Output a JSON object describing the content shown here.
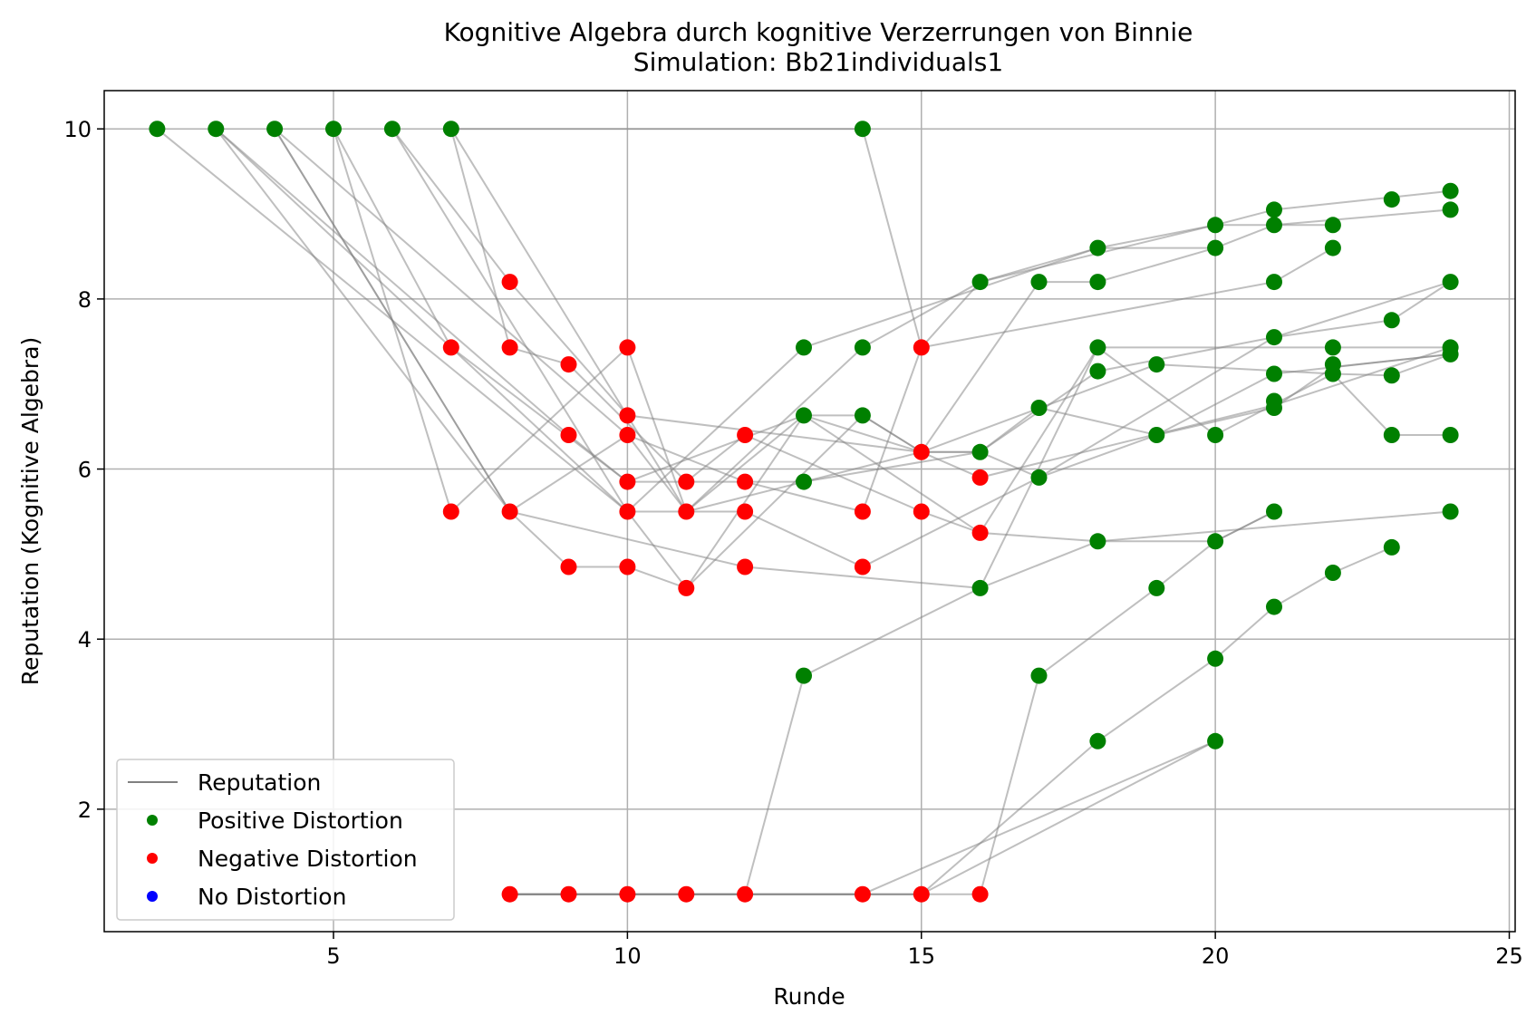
{
  "chart_data": {
    "type": "scatter",
    "title": "Kognitive Algebra durch kognitive Verzerrungen von Binnie",
    "subtitle": "Simulation: Bb21individuals1",
    "xlabel": "Runde",
    "ylabel": "Reputation (Kognitive Algebra)",
    "xlim": [
      1.1,
      25.1
    ],
    "ylim": [
      0.56,
      10.45
    ],
    "xticks": [
      5,
      10,
      15,
      20,
      25
    ],
    "yticks": [
      2,
      4,
      6,
      8,
      10
    ],
    "grid": true,
    "legend_position": "lower-left",
    "legend": [
      {
        "label": "Reputation",
        "kind": "line",
        "color": "#808080"
      },
      {
        "label": "Positive Distortion",
        "kind": "dot",
        "color": "#008000"
      },
      {
        "label": "Negative Distortion",
        "kind": "dot",
        "color": "#ff0000"
      },
      {
        "label": "No Distortion",
        "kind": "dot",
        "color": "#0000ff"
      }
    ],
    "colors": {
      "positive": "#008000",
      "negative": "#ff0000",
      "none": "#0000ff",
      "line": "#808080"
    },
    "series": [
      {
        "points": [
          [
            2,
            10
          ],
          [
            10,
            5.5
          ],
          [
            11,
            4.6
          ],
          [
            13,
            6.63
          ],
          [
            14,
            6.63
          ],
          [
            15,
            6.2
          ],
          [
            16,
            6.2
          ],
          [
            18,
            7.15
          ],
          [
            21,
            7.55
          ],
          [
            24,
            8.2
          ]
        ]
      },
      {
        "points": [
          [
            3,
            10
          ],
          [
            10,
            5.5
          ],
          [
            13,
            7.43
          ],
          [
            18,
            8.6
          ],
          [
            20,
            8.87
          ],
          [
            21,
            9.05
          ],
          [
            24,
            9.27
          ]
        ]
      },
      {
        "points": [
          [
            3,
            10
          ],
          [
            8,
            5.5
          ],
          [
            10,
            6.4
          ],
          [
            11,
            5.5
          ],
          [
            13,
            6.63
          ],
          [
            15,
            6.2
          ],
          [
            16,
            5.9
          ],
          [
            21,
            6.75
          ],
          [
            24,
            7.43
          ]
        ]
      },
      {
        "points": [
          [
            3,
            10
          ],
          [
            9,
            6.4
          ],
          [
            10,
            5.85
          ],
          [
            13,
            5.85
          ],
          [
            16,
            6.2
          ],
          [
            17,
            6.72
          ],
          [
            19,
            6.4
          ],
          [
            21,
            7.12
          ],
          [
            24,
            7.35
          ]
        ]
      },
      {
        "points": [
          [
            4,
            10
          ],
          [
            10,
            6.4
          ],
          [
            12,
            5.85
          ],
          [
            14,
            5.5
          ],
          [
            15,
            7.43
          ],
          [
            21,
            8.2
          ],
          [
            22,
            8.6
          ]
        ]
      },
      {
        "points": [
          [
            4,
            10
          ],
          [
            8,
            5.5
          ],
          [
            12,
            4.85
          ],
          [
            16,
            4.6
          ],
          [
            18,
            5.15
          ],
          [
            24,
            5.5
          ]
        ]
      },
      {
        "points": [
          [
            4,
            10
          ],
          [
            8,
            5.5
          ],
          [
            9,
            4.85
          ],
          [
            10,
            4.85
          ],
          [
            11,
            4.6
          ],
          [
            14,
            6.63
          ],
          [
            15,
            6.2
          ],
          [
            16,
            6.2
          ],
          [
            17,
            5.9
          ],
          [
            21,
            7.55
          ],
          [
            23,
            7.75
          ],
          [
            24,
            8.2
          ]
        ]
      },
      {
        "points": [
          [
            5,
            10
          ],
          [
            7,
            5.5
          ],
          [
            10,
            7.43
          ],
          [
            11,
            5.5
          ],
          [
            14,
            7.43
          ],
          [
            16,
            8.2
          ],
          [
            20,
            8.87
          ],
          [
            21,
            8.87
          ],
          [
            24,
            9.05
          ]
        ]
      },
      {
        "points": [
          [
            5,
            10
          ],
          [
            7,
            7.43
          ],
          [
            10,
            5.85
          ],
          [
            13,
            6.63
          ],
          [
            16,
            5.25
          ],
          [
            18,
            7.43
          ],
          [
            22,
            7.43
          ],
          [
            24,
            7.43
          ]
        ]
      },
      {
        "points": [
          [
            6,
            10
          ],
          [
            10,
            5.5
          ],
          [
            12,
            5.5
          ],
          [
            14,
            4.85
          ],
          [
            17,
            5.9
          ],
          [
            19,
            6.4
          ],
          [
            21,
            6.72
          ],
          [
            22,
            7.2
          ],
          [
            24,
            7.35
          ]
        ]
      },
      {
        "points": [
          [
            6,
            10
          ],
          [
            8,
            8.2
          ],
          [
            10,
            6.63
          ],
          [
            15,
            6.2
          ],
          [
            17,
            8.2
          ],
          [
            18,
            8.2
          ],
          [
            20,
            8.6
          ],
          [
            21,
            8.87
          ],
          [
            22,
            8.87
          ]
        ]
      },
      {
        "points": [
          [
            7,
            10
          ],
          [
            8,
            7.43
          ],
          [
            9,
            7.23
          ],
          [
            11,
            5.85
          ],
          [
            12,
            6.4
          ],
          [
            15,
            5.5
          ],
          [
            16,
            5.25
          ],
          [
            18,
            5.15
          ],
          [
            20,
            5.15
          ],
          [
            21,
            5.5
          ]
        ]
      },
      {
        "points": [
          [
            7,
            10
          ],
          [
            11,
            5.5
          ],
          [
            15,
            6.2
          ],
          [
            19,
            7.23
          ],
          [
            22,
            7.12
          ],
          [
            23,
            7.1
          ],
          [
            24,
            7.35
          ]
        ]
      },
      {
        "points": [
          [
            7,
            10
          ],
          [
            14,
            10
          ],
          [
            15,
            7.43
          ],
          [
            16,
            8.2
          ],
          [
            18,
            8.6
          ],
          [
            20,
            8.6
          ]
        ]
      },
      {
        "points": [
          [
            8,
            1
          ],
          [
            12,
            1
          ],
          [
            13,
            3.57
          ],
          [
            16,
            4.6
          ],
          [
            18,
            7.43
          ],
          [
            20,
            6.4
          ],
          [
            22,
            7.12
          ],
          [
            23,
            6.4
          ],
          [
            24,
            6.4
          ]
        ]
      },
      {
        "points": [
          [
            8,
            1
          ],
          [
            16,
            1
          ],
          [
            17,
            3.57
          ],
          [
            19,
            4.6
          ],
          [
            20,
            5.15
          ],
          [
            21,
            5.5
          ]
        ]
      },
      {
        "points": [
          [
            8,
            1
          ],
          [
            15,
            1
          ],
          [
            18,
            2.8
          ],
          [
            20,
            3.77
          ],
          [
            21,
            4.38
          ],
          [
            22,
            4.78
          ],
          [
            23,
            5.08
          ]
        ]
      },
      {
        "points": [
          [
            8,
            1
          ],
          [
            14,
            1
          ],
          [
            20,
            2.8
          ]
        ]
      },
      {
        "points": [
          [
            8,
            1
          ],
          [
            15,
            1
          ],
          [
            20,
            2.8
          ]
        ]
      }
    ],
    "points": [
      {
        "x": 2,
        "y": 10,
        "c": "positive"
      },
      {
        "x": 3,
        "y": 10,
        "c": "positive"
      },
      {
        "x": 4,
        "y": 10,
        "c": "positive"
      },
      {
        "x": 5,
        "y": 10,
        "c": "positive"
      },
      {
        "x": 6,
        "y": 10,
        "c": "positive"
      },
      {
        "x": 7,
        "y": 10,
        "c": "positive"
      },
      {
        "x": 14,
        "y": 10,
        "c": "positive"
      },
      {
        "x": 7,
        "y": 7.43,
        "c": "negative"
      },
      {
        "x": 7,
        "y": 5.5,
        "c": "negative"
      },
      {
        "x": 8,
        "y": 8.2,
        "c": "negative"
      },
      {
        "x": 8,
        "y": 7.43,
        "c": "negative"
      },
      {
        "x": 8,
        "y": 5.5,
        "c": "negative"
      },
      {
        "x": 8,
        "y": 1,
        "c": "negative"
      },
      {
        "x": 9,
        "y": 7.23,
        "c": "negative"
      },
      {
        "x": 9,
        "y": 6.4,
        "c": "negative"
      },
      {
        "x": 9,
        "y": 4.85,
        "c": "negative"
      },
      {
        "x": 9,
        "y": 1,
        "c": "negative"
      },
      {
        "x": 10,
        "y": 7.43,
        "c": "negative"
      },
      {
        "x": 10,
        "y": 6.63,
        "c": "negative"
      },
      {
        "x": 10,
        "y": 6.4,
        "c": "negative"
      },
      {
        "x": 10,
        "y": 5.85,
        "c": "negative"
      },
      {
        "x": 10,
        "y": 5.5,
        "c": "negative"
      },
      {
        "x": 10,
        "y": 4.85,
        "c": "negative"
      },
      {
        "x": 10,
        "y": 1,
        "c": "negative"
      },
      {
        "x": 11,
        "y": 5.85,
        "c": "negative"
      },
      {
        "x": 11,
        "y": 5.5,
        "c": "negative"
      },
      {
        "x": 11,
        "y": 4.6,
        "c": "negative"
      },
      {
        "x": 11,
        "y": 1,
        "c": "negative"
      },
      {
        "x": 12,
        "y": 6.4,
        "c": "negative"
      },
      {
        "x": 12,
        "y": 5.85,
        "c": "negative"
      },
      {
        "x": 12,
        "y": 5.5,
        "c": "negative"
      },
      {
        "x": 12,
        "y": 4.85,
        "c": "negative"
      },
      {
        "x": 12,
        "y": 1,
        "c": "negative"
      },
      {
        "x": 13,
        "y": 7.43,
        "c": "positive"
      },
      {
        "x": 13,
        "y": 6.63,
        "c": "positive"
      },
      {
        "x": 13,
        "y": 5.85,
        "c": "positive"
      },
      {
        "x": 13,
        "y": 3.57,
        "c": "positive"
      },
      {
        "x": 14,
        "y": 7.43,
        "c": "positive"
      },
      {
        "x": 14,
        "y": 6.63,
        "c": "positive"
      },
      {
        "x": 14,
        "y": 5.5,
        "c": "negative"
      },
      {
        "x": 14,
        "y": 4.85,
        "c": "negative"
      },
      {
        "x": 14,
        "y": 1,
        "c": "negative"
      },
      {
        "x": 15,
        "y": 7.43,
        "c": "negative"
      },
      {
        "x": 15,
        "y": 6.2,
        "c": "negative"
      },
      {
        "x": 15,
        "y": 5.5,
        "c": "negative"
      },
      {
        "x": 15,
        "y": 1,
        "c": "negative"
      },
      {
        "x": 16,
        "y": 8.2,
        "c": "positive"
      },
      {
        "x": 16,
        "y": 6.2,
        "c": "positive"
      },
      {
        "x": 16,
        "y": 4.6,
        "c": "positive"
      },
      {
        "x": 16,
        "y": 5.9,
        "c": "negative"
      },
      {
        "x": 16,
        "y": 5.25,
        "c": "negative"
      },
      {
        "x": 16,
        "y": 1,
        "c": "negative"
      },
      {
        "x": 17,
        "y": 8.2,
        "c": "positive"
      },
      {
        "x": 17,
        "y": 6.72,
        "c": "positive"
      },
      {
        "x": 17,
        "y": 5.9,
        "c": "positive"
      },
      {
        "x": 17,
        "y": 3.57,
        "c": "positive"
      },
      {
        "x": 18,
        "y": 8.6,
        "c": "positive"
      },
      {
        "x": 18,
        "y": 8.2,
        "c": "positive"
      },
      {
        "x": 18,
        "y": 7.43,
        "c": "positive"
      },
      {
        "x": 18,
        "y": 7.15,
        "c": "positive"
      },
      {
        "x": 18,
        "y": 5.15,
        "c": "positive"
      },
      {
        "x": 18,
        "y": 2.8,
        "c": "positive"
      },
      {
        "x": 19,
        "y": 7.23,
        "c": "positive"
      },
      {
        "x": 19,
        "y": 6.4,
        "c": "positive"
      },
      {
        "x": 19,
        "y": 4.6,
        "c": "positive"
      },
      {
        "x": 20,
        "y": 8.87,
        "c": "positive"
      },
      {
        "x": 20,
        "y": 8.6,
        "c": "positive"
      },
      {
        "x": 20,
        "y": 6.4,
        "c": "positive"
      },
      {
        "x": 20,
        "y": 5.15,
        "c": "positive"
      },
      {
        "x": 20,
        "y": 3.77,
        "c": "positive"
      },
      {
        "x": 20,
        "y": 2.8,
        "c": "positive"
      },
      {
        "x": 21,
        "y": 9.05,
        "c": "positive"
      },
      {
        "x": 21,
        "y": 8.87,
        "c": "positive"
      },
      {
        "x": 21,
        "y": 8.2,
        "c": "positive"
      },
      {
        "x": 21,
        "y": 7.55,
        "c": "positive"
      },
      {
        "x": 21,
        "y": 7.12,
        "c": "positive"
      },
      {
        "x": 21,
        "y": 6.8,
        "c": "positive"
      },
      {
        "x": 21,
        "y": 6.72,
        "c": "positive"
      },
      {
        "x": 21,
        "y": 5.5,
        "c": "positive"
      },
      {
        "x": 21,
        "y": 4.38,
        "c": "positive"
      },
      {
        "x": 22,
        "y": 8.87,
        "c": "positive"
      },
      {
        "x": 22,
        "y": 8.6,
        "c": "positive"
      },
      {
        "x": 22,
        "y": 7.43,
        "c": "positive"
      },
      {
        "x": 22,
        "y": 7.23,
        "c": "positive"
      },
      {
        "x": 22,
        "y": 7.12,
        "c": "positive"
      },
      {
        "x": 22,
        "y": 4.78,
        "c": "positive"
      },
      {
        "x": 23,
        "y": 9.17,
        "c": "positive"
      },
      {
        "x": 23,
        "y": 7.75,
        "c": "positive"
      },
      {
        "x": 23,
        "y": 7.1,
        "c": "positive"
      },
      {
        "x": 23,
        "y": 6.4,
        "c": "positive"
      },
      {
        "x": 23,
        "y": 5.08,
        "c": "positive"
      },
      {
        "x": 24,
        "y": 9.27,
        "c": "positive"
      },
      {
        "x": 24,
        "y": 9.05,
        "c": "positive"
      },
      {
        "x": 24,
        "y": 8.2,
        "c": "positive"
      },
      {
        "x": 24,
        "y": 7.43,
        "c": "positive"
      },
      {
        "x": 24,
        "y": 7.35,
        "c": "positive"
      },
      {
        "x": 24,
        "y": 6.4,
        "c": "positive"
      },
      {
        "x": 24,
        "y": 5.5,
        "c": "positive"
      }
    ]
  }
}
